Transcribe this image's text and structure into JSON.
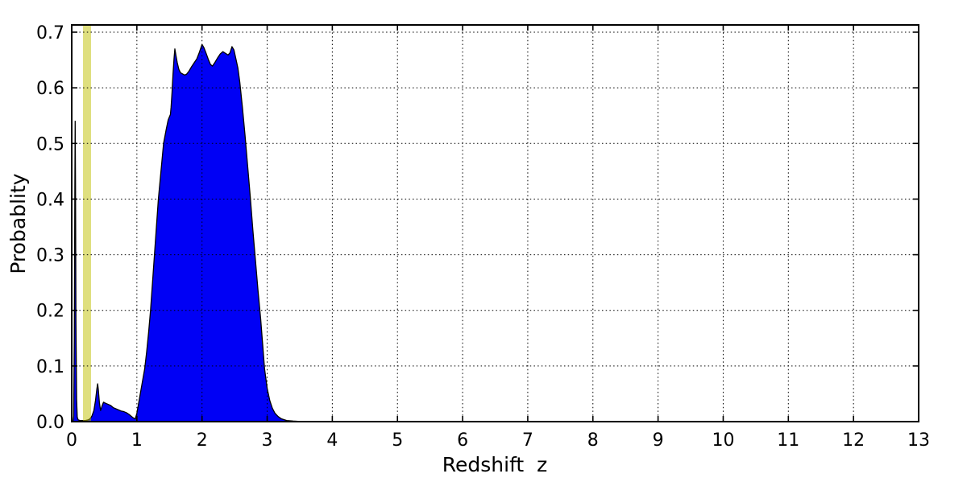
{
  "figure": {
    "background": "#ffffff",
    "title": ""
  },
  "chart_data": {
    "type": "area",
    "title": "",
    "xlabel": "Redshift  z",
    "ylabel": "Probablity",
    "xlim": [
      0,
      13
    ],
    "ylim": [
      0,
      0.713
    ],
    "xticks": [
      0,
      1,
      2,
      3,
      4,
      5,
      6,
      7,
      8,
      9,
      10,
      11,
      12,
      13
    ],
    "xtick_labels": [
      "0",
      "1",
      "2",
      "3",
      "4",
      "5",
      "6",
      "7",
      "8",
      "9",
      "10",
      "11",
      "12",
      "13"
    ],
    "yticks": [
      0.0,
      0.1,
      0.2,
      0.3,
      0.4,
      0.5,
      0.6,
      0.7
    ],
    "ytick_labels": [
      "0.0",
      "0.1",
      "0.2",
      "0.3",
      "0.4",
      "0.5",
      "0.6",
      "0.7"
    ],
    "grid": {
      "on": true,
      "style": "dotted",
      "color": "#000000",
      "above_data": true
    },
    "axis_color": "#000000",
    "legend": null,
    "vspan": {
      "name": "reference-redshift-band",
      "x0": 0.173,
      "x1": 0.297,
      "color": "rgba(191,191,0,0.5)",
      "flat_color_on_white": "#dfdf80"
    },
    "series": [
      {
        "name": "redshift-probability-pdf",
        "fill_color": "#0000f5",
        "line_color": "#000000",
        "points": [
          [
            0.0,
            0.0
          ],
          [
            0.02,
            0.0
          ],
          [
            0.03,
            0.01
          ],
          [
            0.04,
            0.15
          ],
          [
            0.048,
            0.42
          ],
          [
            0.053,
            0.54
          ],
          [
            0.058,
            0.43
          ],
          [
            0.065,
            0.18
          ],
          [
            0.075,
            0.04
          ],
          [
            0.085,
            0.008
          ],
          [
            0.1,
            0.003
          ],
          [
            0.13,
            0.002
          ],
          [
            0.17,
            0.002
          ],
          [
            0.21,
            0.002
          ],
          [
            0.25,
            0.003
          ],
          [
            0.28,
            0.005
          ],
          [
            0.31,
            0.01
          ],
          [
            0.34,
            0.02
          ],
          [
            0.365,
            0.038
          ],
          [
            0.385,
            0.058
          ],
          [
            0.398,
            0.068
          ],
          [
            0.408,
            0.058
          ],
          [
            0.425,
            0.034
          ],
          [
            0.443,
            0.02
          ],
          [
            0.465,
            0.028
          ],
          [
            0.488,
            0.035
          ],
          [
            0.52,
            0.033
          ],
          [
            0.56,
            0.031
          ],
          [
            0.6,
            0.029
          ],
          [
            0.64,
            0.025
          ],
          [
            0.68,
            0.023
          ],
          [
            0.72,
            0.021
          ],
          [
            0.76,
            0.019
          ],
          [
            0.8,
            0.018
          ],
          [
            0.84,
            0.016
          ],
          [
            0.88,
            0.013
          ],
          [
            0.92,
            0.009
          ],
          [
            0.955,
            0.006
          ],
          [
            0.975,
            0.005
          ],
          [
            1.0,
            0.015
          ],
          [
            1.03,
            0.035
          ],
          [
            1.06,
            0.055
          ],
          [
            1.09,
            0.075
          ],
          [
            1.12,
            0.095
          ],
          [
            1.15,
            0.125
          ],
          [
            1.18,
            0.16
          ],
          [
            1.21,
            0.2
          ],
          [
            1.24,
            0.25
          ],
          [
            1.27,
            0.3
          ],
          [
            1.3,
            0.35
          ],
          [
            1.33,
            0.4
          ],
          [
            1.37,
            0.45
          ],
          [
            1.41,
            0.5
          ],
          [
            1.45,
            0.525
          ],
          [
            1.48,
            0.542
          ],
          [
            1.5,
            0.548
          ],
          [
            1.515,
            0.552
          ],
          [
            1.525,
            0.565
          ],
          [
            1.54,
            0.592
          ],
          [
            1.555,
            0.625
          ],
          [
            1.57,
            0.652
          ],
          [
            1.583,
            0.67
          ],
          [
            1.6,
            0.658
          ],
          [
            1.62,
            0.645
          ],
          [
            1.645,
            0.633
          ],
          [
            1.67,
            0.627
          ],
          [
            1.7,
            0.625
          ],
          [
            1.73,
            0.623
          ],
          [
            1.76,
            0.624
          ],
          [
            1.8,
            0.63
          ],
          [
            1.84,
            0.638
          ],
          [
            1.88,
            0.645
          ],
          [
            1.92,
            0.652
          ],
          [
            1.96,
            0.664
          ],
          [
            2.0,
            0.678
          ],
          [
            2.03,
            0.672
          ],
          [
            2.06,
            0.663
          ],
          [
            2.1,
            0.65
          ],
          [
            2.13,
            0.642
          ],
          [
            2.16,
            0.639
          ],
          [
            2.2,
            0.646
          ],
          [
            2.24,
            0.654
          ],
          [
            2.28,
            0.661
          ],
          [
            2.32,
            0.665
          ],
          [
            2.36,
            0.662
          ],
          [
            2.4,
            0.659
          ],
          [
            2.43,
            0.663
          ],
          [
            2.46,
            0.674
          ],
          [
            2.49,
            0.668
          ],
          [
            2.52,
            0.652
          ],
          [
            2.55,
            0.636
          ],
          [
            2.58,
            0.61
          ],
          [
            2.62,
            0.565
          ],
          [
            2.66,
            0.515
          ],
          [
            2.7,
            0.46
          ],
          [
            2.74,
            0.405
          ],
          [
            2.78,
            0.345
          ],
          [
            2.82,
            0.29
          ],
          [
            2.86,
            0.235
          ],
          [
            2.9,
            0.185
          ],
          [
            2.93,
            0.14
          ],
          [
            2.96,
            0.095
          ],
          [
            3.0,
            0.06
          ],
          [
            3.04,
            0.038
          ],
          [
            3.08,
            0.024
          ],
          [
            3.12,
            0.015
          ],
          [
            3.17,
            0.009
          ],
          [
            3.22,
            0.005
          ],
          [
            3.3,
            0.002
          ],
          [
            3.4,
            0.001
          ],
          [
            3.55,
            0.0
          ],
          [
            13.0,
            0.0
          ]
        ]
      }
    ]
  }
}
